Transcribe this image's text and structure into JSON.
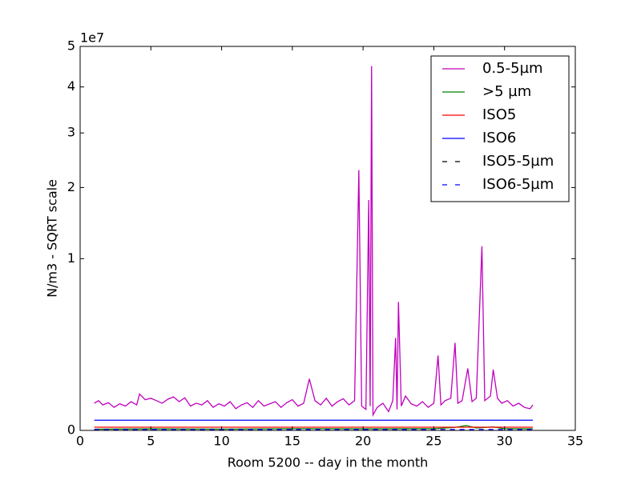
{
  "chart_data": {
    "type": "line",
    "scale": "sqrt",
    "xlabel": "Room 5200 -- day in the month",
    "ylabel": "N/m3 - SQRT scale",
    "y_offset_text": "1e7",
    "xlim": [
      0,
      35
    ],
    "xticks": [
      0,
      5,
      10,
      15,
      20,
      25,
      30,
      35
    ],
    "ylim": [
      0,
      5
    ],
    "yticks": [
      0,
      1,
      2,
      3,
      4,
      5
    ],
    "legend": "upper right",
    "series": [
      {
        "name": "0.5-5µm",
        "color": "#bf00bf",
        "linestyle": "-",
        "x": [
          1,
          1.3,
          1.6,
          2,
          2.4,
          2.8,
          3.2,
          3.6,
          4,
          4.2,
          4.6,
          5,
          5.4,
          5.8,
          6.2,
          6.6,
          7,
          7.4,
          7.8,
          8.2,
          8.6,
          9,
          9.4,
          9.8,
          10.2,
          10.6,
          11,
          11.4,
          11.8,
          12.2,
          12.6,
          13,
          13.4,
          13.8,
          14.2,
          14.6,
          15,
          15.4,
          15.8,
          16.2,
          16.6,
          17,
          17.4,
          17.8,
          18.2,
          18.6,
          19,
          19.4,
          19.7,
          19.9,
          20.2,
          20.4,
          20.5,
          20.6,
          20.7,
          21,
          21.4,
          21.8,
          22.1,
          22.3,
          22.4,
          22.5,
          22.7,
          23,
          23.4,
          23.8,
          24.2,
          24.6,
          25,
          25.3,
          25.5,
          25.8,
          26.2,
          26.5,
          26.7,
          27,
          27.4,
          27.7,
          28,
          28.4,
          28.6,
          29,
          29.2,
          29.5,
          29.8,
          30.2,
          30.6,
          31,
          31.4,
          31.8,
          32
        ],
        "values": [
          0.025,
          0.03,
          0.022,
          0.026,
          0.018,
          0.024,
          0.02,
          0.028,
          0.022,
          0.045,
          0.032,
          0.035,
          0.03,
          0.025,
          0.033,
          0.038,
          0.028,
          0.036,
          0.02,
          0.025,
          0.022,
          0.03,
          0.018,
          0.024,
          0.02,
          0.028,
          0.016,
          0.022,
          0.026,
          0.018,
          0.03,
          0.02,
          0.024,
          0.028,
          0.018,
          0.026,
          0.032,
          0.02,
          0.025,
          0.09,
          0.03,
          0.022,
          0.035,
          0.02,
          0.028,
          0.034,
          0.022,
          0.03,
          2.3,
          0.02,
          0.015,
          1.8,
          0.02,
          4.5,
          0.008,
          0.018,
          0.025,
          0.012,
          0.03,
          0.29,
          0.015,
          0.56,
          0.02,
          0.04,
          0.024,
          0.02,
          0.028,
          0.018,
          0.025,
          0.19,
          0.022,
          0.03,
          0.035,
          0.26,
          0.025,
          0.03,
          0.13,
          0.028,
          0.035,
          1.15,
          0.03,
          0.04,
          0.125,
          0.035,
          0.025,
          0.03,
          0.02,
          0.025,
          0.018,
          0.016,
          0.022
        ]
      },
      {
        "name": ">5 µm",
        "color": "#008000",
        "linestyle": "-",
        "x": [
          1,
          5,
          10,
          15,
          20,
          25,
          26.5,
          27.3,
          28,
          29.2,
          30,
          32
        ],
        "values": [
          5e-05,
          8e-05,
          6e-05,
          0.0001,
          8e-05,
          0.0001,
          0.0003,
          0.0008,
          0.0002,
          0.0004,
          0.0001,
          8e-05
        ]
      },
      {
        "name": "ISO5",
        "color": "#ff0000",
        "linestyle": "-",
        "x": [
          1,
          32
        ],
        "values": [
          0.000352,
          0.000352
        ]
      },
      {
        "name": "ISO6",
        "color": "#0000ff",
        "linestyle": "-",
        "x": [
          1,
          32
        ],
        "values": [
          0.00352,
          0.00352
        ]
      },
      {
        "name": "ISO5-5µm",
        "color": "#000000",
        "linestyle": "--",
        "x": [
          1,
          32
        ],
        "values": [
          2.9e-06,
          2.9e-06
        ]
      },
      {
        "name": "ISO6-5µm",
        "color": "#0000ff",
        "linestyle": "--",
        "x": [
          1,
          32
        ],
        "values": [
          2.93e-05,
          2.93e-05
        ]
      }
    ]
  }
}
